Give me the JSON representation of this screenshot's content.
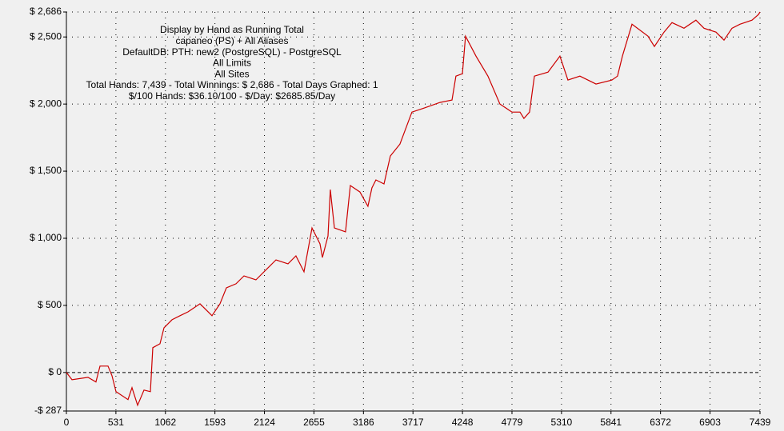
{
  "chart_data": {
    "type": "line",
    "annotations": [
      "Display by Hand as Running Total",
      "capaneo (PS) + All Aliases",
      "DefaultDB: PTH: new2 (PostgreSQL) - PostgreSQL",
      "All Limits",
      "All Sites",
      "Total Hands: 7,439 - Total Winnings: $ 2,686 - Total Days Graphed: 1",
      "$/100 Hands: $36.10/100 - $/Day: $2685.85/Day"
    ],
    "x": [
      0,
      60,
      232,
      317,
      360,
      446,
      489,
      532,
      661,
      704,
      764,
      832,
      901,
      927,
      1004,
      1047,
      1133,
      1218,
      1304,
      1433,
      1562,
      1647,
      1716,
      1819,
      1905,
      2033,
      2162,
      2248,
      2377,
      2462,
      2548,
      2634,
      2720,
      2746,
      2806,
      2831,
      2874,
      2994,
      3045,
      3148,
      3234,
      3277,
      3320,
      3406,
      3474,
      3577,
      3706,
      3835,
      4007,
      4136,
      4178,
      4247,
      4281,
      4393,
      4521,
      4650,
      4779,
      4865,
      4907,
      4967,
      5019,
      5165,
      5293,
      5379,
      5508,
      5680,
      5851,
      5911,
      5963,
      6066,
      6237,
      6306,
      6409,
      6495,
      6624,
      6752,
      6838,
      6967,
      7053,
      7139,
      7224,
      7353,
      7422,
      7439
    ],
    "series": [
      {
        "color": "#cc0000",
        "values": [
          0,
          -54,
          -36,
          -71,
          48,
          48,
          -24,
          -143,
          -202,
          -113,
          -244,
          -131,
          -143,
          185,
          214,
          333,
          393,
          423,
          452,
          512,
          423,
          512,
          631,
          661,
          720,
          690,
          780,
          839,
          810,
          869,
          750,
          1077,
          958,
          857,
          1018,
          1363,
          1077,
          1048,
          1393,
          1345,
          1238,
          1375,
          1435,
          1405,
          1613,
          1702,
          1940,
          1970,
          2012,
          2030,
          2208,
          2226,
          2506,
          2357,
          2208,
          2000,
          1940,
          1940,
          1893,
          1940,
          2208,
          2238,
          2357,
          2179,
          2208,
          2149,
          2179,
          2208,
          2357,
          2595,
          2506,
          2429,
          2536,
          2607,
          2565,
          2625,
          2565,
          2536,
          2476,
          2565,
          2595,
          2625,
          2667,
          2686
        ]
      }
    ],
    "xlim": [
      0,
      7439
    ],
    "xticks": [
      0,
      531,
      1062,
      1593,
      2124,
      2655,
      3186,
      3717,
      4248,
      4779,
      5310,
      5841,
      6372,
      6903,
      7439
    ],
    "ylim": [
      -287,
      2686
    ],
    "yticks": [
      {
        "value": -287,
        "label": "-$ 287"
      },
      {
        "value": 0,
        "label": "$ 0"
      },
      {
        "value": 500,
        "label": "$ 500"
      },
      {
        "value": 1000,
        "label": "$ 1,000"
      },
      {
        "value": 1500,
        "label": "$ 1,500"
      },
      {
        "value": 2000,
        "label": "$ 2,000"
      },
      {
        "value": 2500,
        "label": "$ 2,500"
      },
      {
        "value": 2686,
        "label": "$ 2,686"
      }
    ],
    "grid": true
  }
}
